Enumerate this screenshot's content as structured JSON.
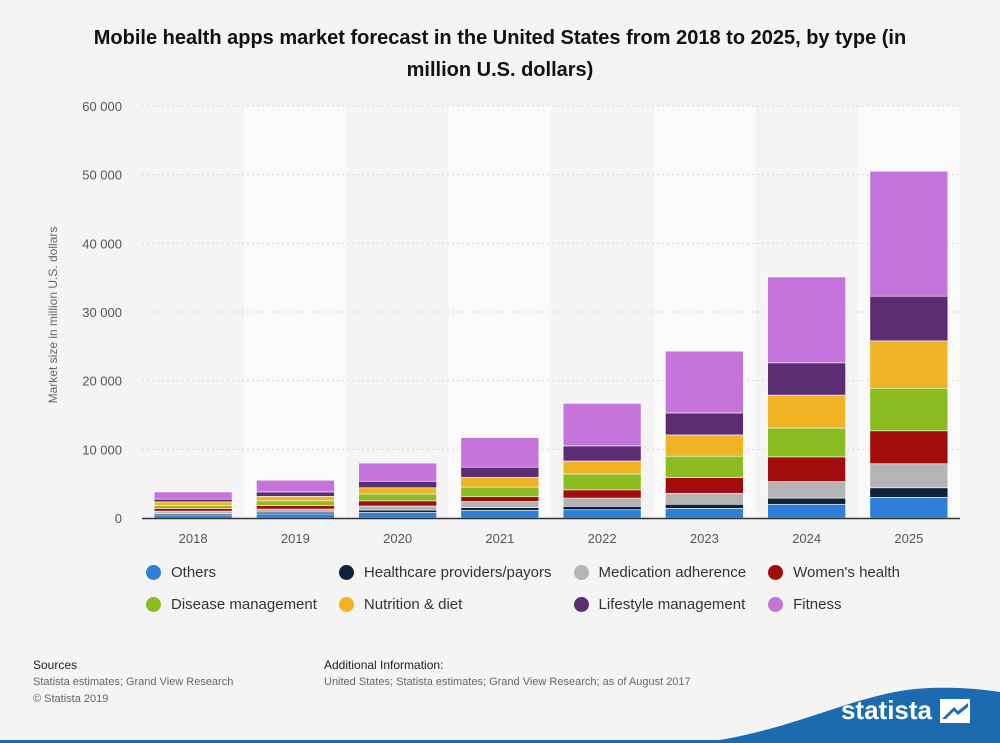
{
  "title": "Mobile health apps market forecast in the United States from 2018 to 2025, by type (in million U.S. dollars)",
  "chart_data": {
    "type": "bar",
    "stacked": true,
    "title": "Mobile health apps market forecast in the United States from 2018 to 2025, by type (in million U.S. dollars)",
    "xlabel": "",
    "ylabel": "Market size in million U.S. dollars",
    "ylim": [
      0,
      60000
    ],
    "yticks": [
      0,
      10000,
      20000,
      30000,
      40000,
      50000,
      60000
    ],
    "ytick_labels": [
      "0",
      "10 000",
      "20 000",
      "30 000",
      "40 000",
      "50 000",
      "60 000"
    ],
    "categories": [
      "2018",
      "2019",
      "2020",
      "2021",
      "2022",
      "2023",
      "2024",
      "2025"
    ],
    "series": [
      {
        "name": "Others",
        "color": "#2f7ed8",
        "values": [
          450,
          600,
          800,
          1100,
          1200,
          1400,
          2000,
          3000
        ]
      },
      {
        "name": "Healthcare providers/payors",
        "color": "#0d233a",
        "values": [
          200,
          250,
          350,
          400,
          500,
          600,
          900,
          1400
        ]
      },
      {
        "name": "Medication adherence",
        "color": "#b4b4b4",
        "values": [
          350,
          450,
          600,
          900,
          1200,
          1600,
          2400,
          3500
        ]
      },
      {
        "name": "Women's health",
        "color": "#a10d0d",
        "values": [
          400,
          500,
          750,
          700,
          1200,
          2300,
          3600,
          4800
        ]
      },
      {
        "name": "Disease management",
        "color": "#8bbc21",
        "values": [
          450,
          700,
          1000,
          1400,
          2300,
          3100,
          4200,
          6200
        ]
      },
      {
        "name": "Nutrition & diet",
        "color": "#f0b323",
        "values": [
          500,
          650,
          900,
          1400,
          1900,
          3100,
          4800,
          6900
        ]
      },
      {
        "name": "Lifestyle management",
        "color": "#5c2d72",
        "values": [
          400,
          650,
          950,
          1500,
          2200,
          3200,
          4700,
          6500
        ]
      },
      {
        "name": "Fitness",
        "color": "#c474da",
        "values": [
          1050,
          1700,
          2650,
          4300,
          6200,
          9000,
          12500,
          18200
        ]
      }
    ]
  },
  "legend": [
    {
      "label": "Others",
      "color": "#2f7ed8"
    },
    {
      "label": "Healthcare providers/payors",
      "color": "#0d233a"
    },
    {
      "label": "Medication adherence",
      "color": "#b4b4b4"
    },
    {
      "label": "Women's health",
      "color": "#a10d0d"
    },
    {
      "label": "Disease management",
      "color": "#8bbc21"
    },
    {
      "label": "Nutrition & diet",
      "color": "#f0b323"
    },
    {
      "label": "Lifestyle management",
      "color": "#5c2d72"
    },
    {
      "label": "Fitness",
      "color": "#c474da"
    }
  ],
  "footer": {
    "sources_heading": "Sources",
    "sources_line1": "Statista estimates; Grand View Research",
    "sources_line2": "© Statista 2019",
    "additional_heading": "Additional Information:",
    "additional_text": "United States; Statista estimates; Grand View Research; as of August 2017"
  },
  "brand": {
    "name": "statista",
    "wave_color": "#1c6ab0"
  }
}
